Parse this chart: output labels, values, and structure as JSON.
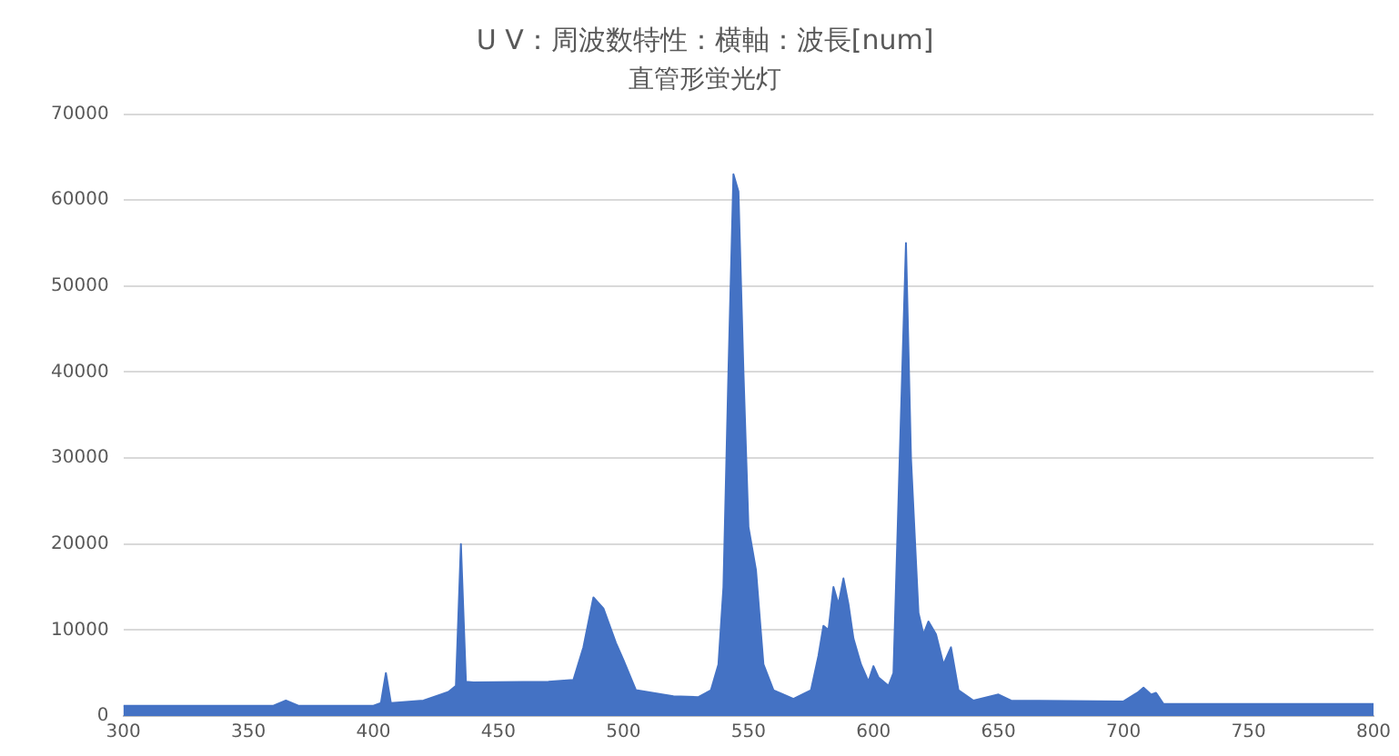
{
  "chart_data": {
    "type": "area",
    "title": "U V：周波数特性：横軸：波長[num]",
    "subtitle": "直管形蛍光灯",
    "x": [
      300,
      360,
      365,
      370,
      400,
      403,
      405,
      407,
      420,
      430,
      433,
      435,
      437,
      440,
      470,
      480,
      484,
      488,
      492,
      497,
      500,
      505,
      520,
      530,
      535,
      538,
      540,
      542,
      544,
      546,
      548,
      550,
      553,
      556,
      560,
      568,
      575,
      578,
      580,
      582,
      584,
      586,
      588,
      590,
      592,
      595,
      598,
      600,
      602,
      606,
      608,
      611,
      613,
      615,
      618,
      620,
      622,
      625,
      628,
      631,
      634,
      640,
      650,
      655,
      700,
      706,
      708,
      711,
      713,
      716,
      800
    ],
    "series": [
      {
        "color": "#4472c4",
        "values": [
          1200,
          1200,
          1800,
          1200,
          1200,
          1500,
          5000,
          1500,
          1800,
          2800,
          3500,
          20000,
          4000,
          3900,
          4000,
          4200,
          8000,
          13800,
          12500,
          8500,
          6500,
          3000,
          2300,
          2200,
          3000,
          6000,
          15000,
          40000,
          63000,
          61000,
          40000,
          22000,
          17000,
          6000,
          3000,
          2000,
          3000,
          7000,
          10500,
          10000,
          15000,
          13000,
          16000,
          13000,
          9000,
          6000,
          4000,
          5800,
          4500,
          3500,
          5000,
          35000,
          55000,
          30000,
          12000,
          9500,
          11000,
          9500,
          6000,
          8000,
          3000,
          1800,
          2500,
          1800,
          1700,
          2800,
          3300,
          2500,
          2700,
          1400,
          1400
        ]
      }
    ],
    "xlim": [
      300,
      800
    ],
    "xticks": [
      300,
      350,
      400,
      450,
      500,
      550,
      600,
      650,
      700,
      750,
      800
    ],
    "ylim": [
      0,
      70000
    ],
    "yticks": [
      0,
      10000,
      20000,
      30000,
      40000,
      50000,
      60000,
      70000
    ],
    "grid": "y",
    "legend": false,
    "marker": "none"
  }
}
